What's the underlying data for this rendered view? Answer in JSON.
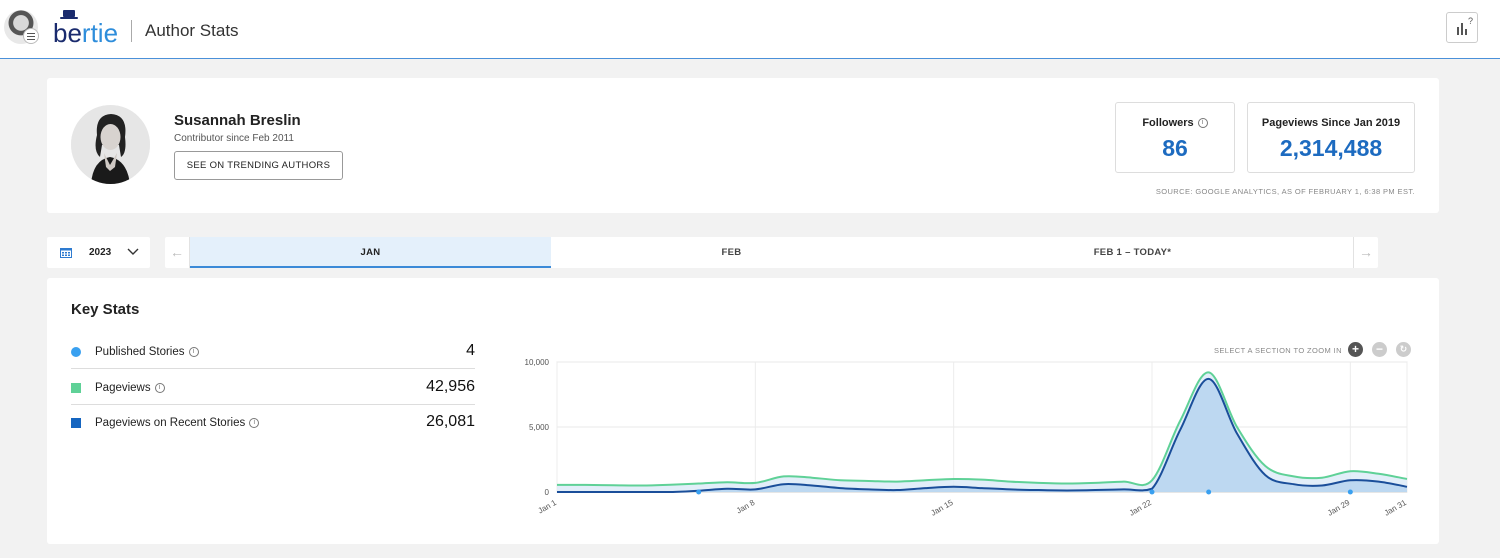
{
  "header": {
    "logo_text_dark": "be",
    "logo_text_light": "rtie",
    "title": "Author Stats",
    "help_icon": "bar-chart-question-icon"
  },
  "profile": {
    "name": "Susannah Breslin",
    "contributor_since": "Contributor since  Feb 2011",
    "trending_button": "SEE ON TRENDING AUTHORS",
    "followers_label": "Followers",
    "followers_value": "86",
    "pageviews_label": "Pageviews Since Jan 2019",
    "pageviews_value": "2,314,488",
    "source_note": "SOURCE: GOOGLE ANALYTICS, AS OF FEBRUARY 1, 6:38 PM EST."
  },
  "date_nav": {
    "year": "2023",
    "tabs": [
      {
        "label": "JAN",
        "active": true
      },
      {
        "label": "FEB",
        "active": false
      },
      {
        "label": "FEB 1 – TODAY*",
        "active": false
      }
    ],
    "prev_arrow": "←",
    "next_arrow": "→"
  },
  "key_stats": {
    "title": "Key Stats",
    "rows": [
      {
        "label": "Published Stories",
        "value": "4",
        "color": "#39a0f0"
      },
      {
        "label": "Pageviews",
        "value": "42,956",
        "color": "#5fd197"
      },
      {
        "label": "Pageviews on Recent Stories",
        "value": "26,081",
        "color": "#1565c0"
      }
    ],
    "zoom_hint": "SELECT A SECTION TO ZOOM IN",
    "zoom_in": "+",
    "zoom_out": "−",
    "zoom_reset": "↻"
  },
  "chart_data": {
    "type": "area",
    "x_tick_labels": [
      "Jan 1",
      "Jan 8",
      "Jan 15",
      "Jan 22",
      "Jan 29",
      "Jan 31"
    ],
    "x_tick_days": [
      1,
      8,
      15,
      22,
      29,
      31
    ],
    "y_tick_labels": [
      "10,000",
      "5,000",
      "0"
    ],
    "ylim": [
      0,
      10000
    ],
    "xlim": [
      1,
      31
    ],
    "grid": true,
    "series": [
      {
        "name": "Pageviews",
        "color": "#5fd197",
        "x": [
          1,
          2,
          3,
          4,
          5,
          6,
          7,
          8,
          9,
          10,
          11,
          12,
          13,
          14,
          15,
          16,
          17,
          18,
          19,
          20,
          21,
          22,
          23,
          24,
          25,
          26,
          27,
          28,
          29,
          30,
          31
        ],
        "values": [
          550,
          550,
          520,
          500,
          560,
          650,
          750,
          700,
          1200,
          1100,
          900,
          850,
          800,
          900,
          1000,
          950,
          800,
          700,
          650,
          700,
          800,
          900,
          5500,
          9200,
          5000,
          2000,
          1200,
          1100,
          1600,
          1400,
          1000
        ]
      },
      {
        "name": "Pageviews on Recent Stories",
        "color": "#1a4e9a",
        "x": [
          1,
          2,
          3,
          4,
          5,
          6,
          7,
          8,
          9,
          10,
          11,
          12,
          13,
          14,
          15,
          16,
          17,
          18,
          19,
          20,
          21,
          22,
          23,
          24,
          25,
          26,
          27,
          28,
          29,
          30,
          31
        ],
        "values": [
          0,
          0,
          0,
          0,
          0,
          100,
          250,
          200,
          600,
          500,
          300,
          200,
          150,
          300,
          400,
          300,
          200,
          150,
          120,
          150,
          200,
          250,
          4800,
          8700,
          4500,
          1300,
          600,
          500,
          900,
          800,
          400
        ]
      },
      {
        "name": "Published Stories",
        "color": "#39a0f0",
        "x": [
          6,
          22,
          24,
          29
        ],
        "values": [
          0,
          0,
          0,
          0
        ]
      }
    ]
  }
}
